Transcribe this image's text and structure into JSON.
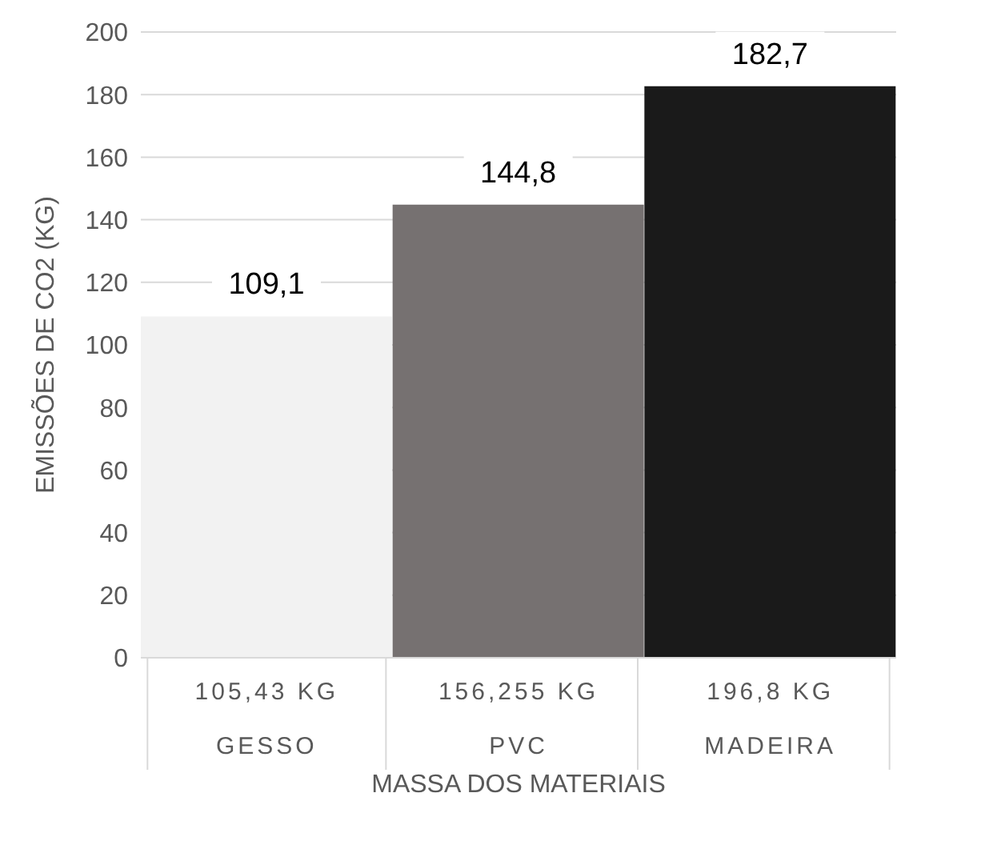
{
  "chart_data": {
    "type": "bar",
    "xlabel": "MASSA DOS MATERIAIS",
    "ylabel": "EMISSÕES DE CO2 (KG)",
    "categories": [
      "105,43 KG\nGESSO",
      "156,255 KG\nPVC",
      "196,8 KG\nMADEIRA"
    ],
    "values": [
      109.1,
      144.8,
      182.7
    ],
    "colors": [
      "#f2f2f2",
      "#767171",
      "#1a1a1a"
    ],
    "value_labels": [
      "109,1",
      "144,8",
      "182,7"
    ],
    "ylim": [
      0,
      200
    ],
    "yticks": [
      0,
      20,
      40,
      60,
      80,
      100,
      120,
      140,
      160,
      180,
      200
    ],
    "grid": "y"
  }
}
